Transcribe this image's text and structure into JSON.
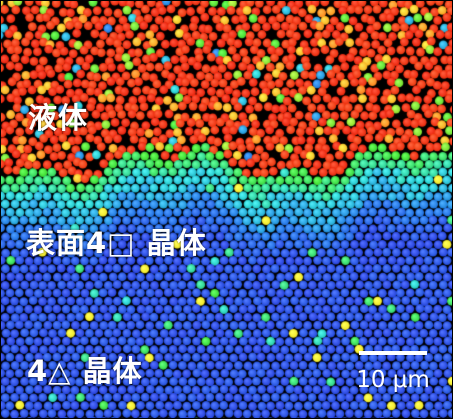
{
  "image": {
    "description_labels": {
      "liquid": "液体",
      "surface_crystal": "表面4□ 晶体",
      "bulk_crystal": "4△ 晶体"
    },
    "scale_bar": {
      "text": "10 μm"
    },
    "colors": {
      "liquid_primary": "#e8200a",
      "liquid_accent": "#ff7f1a",
      "surface_primary": "#39d72d",
      "surface_secondary": "#22c7c7",
      "bulk_primary": "#233fd7",
      "bulk_secondary": "#1d6fe0",
      "background": "#000000",
      "text": "#ffffff"
    }
  }
}
